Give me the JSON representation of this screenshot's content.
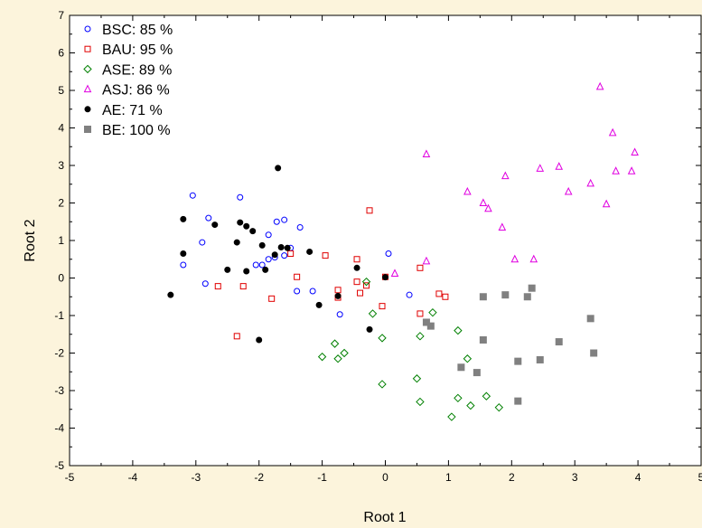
{
  "chart_data": {
    "type": "scatter",
    "title": "",
    "xlabel": "Root 1",
    "ylabel": "Root 2",
    "xlim": [
      -5,
      5
    ],
    "ylim": [
      -5,
      7
    ],
    "x_ticks": [
      "-5",
      "-4",
      "-3",
      "-2",
      "-1",
      "0",
      "1",
      "2",
      "3",
      "4",
      "5"
    ],
    "y_ticks": [
      "-5",
      "-4",
      "-3",
      "-2",
      "-1",
      "0",
      "1",
      "2",
      "3",
      "4",
      "5",
      "6",
      "7"
    ],
    "grid": false,
    "legend_position": "top-left",
    "series": [
      {
        "name": "BSC: 85 %",
        "marker": "circle-open",
        "color": "#0000ff",
        "points": [
          [
            -3.05,
            2.2
          ],
          [
            -2.3,
            2.15
          ],
          [
            -2.8,
            1.6
          ],
          [
            -2.9,
            0.95
          ],
          [
            -3.2,
            0.35
          ],
          [
            -2.85,
            -0.15
          ],
          [
            -2.05,
            0.35
          ],
          [
            -1.95,
            0.35
          ],
          [
            -1.85,
            1.15
          ],
          [
            -1.72,
            1.5
          ],
          [
            -1.6,
            1.55
          ],
          [
            -1.35,
            1.35
          ],
          [
            -1.5,
            0.8
          ],
          [
            -1.6,
            0.6
          ],
          [
            -1.75,
            0.55
          ],
          [
            -1.85,
            0.5
          ],
          [
            -1.4,
            -0.35
          ],
          [
            -1.15,
            -0.35
          ],
          [
            -0.72,
            -0.97
          ],
          [
            0.05,
            0.65
          ],
          [
            0.38,
            -0.45
          ]
        ]
      },
      {
        "name": "BAU: 95 %",
        "marker": "square-open",
        "color": "#e00000",
        "points": [
          [
            -0.25,
            1.8
          ],
          [
            -0.95,
            0.6
          ],
          [
            -1.5,
            0.65
          ],
          [
            -2.65,
            -0.22
          ],
          [
            -2.25,
            -0.22
          ],
          [
            -1.8,
            -0.55
          ],
          [
            -1.4,
            0.03
          ],
          [
            -2.35,
            -1.55
          ],
          [
            -0.75,
            -0.32
          ],
          [
            -0.75,
            -0.52
          ],
          [
            -0.45,
            0.5
          ],
          [
            -0.45,
            -0.1
          ],
          [
            -0.4,
            -0.4
          ],
          [
            -0.3,
            -0.2
          ],
          [
            0.0,
            0.03
          ],
          [
            -0.05,
            -0.75
          ],
          [
            0.55,
            0.27
          ],
          [
            0.55,
            -0.95
          ],
          [
            0.85,
            -0.42
          ],
          [
            0.95,
            -0.5
          ]
        ]
      },
      {
        "name": "ASE: 89 %",
        "marker": "diamond-open",
        "color": "#008000",
        "points": [
          [
            -0.3,
            -0.1
          ],
          [
            -0.2,
            -0.95
          ],
          [
            -0.05,
            -1.6
          ],
          [
            -0.8,
            -1.75
          ],
          [
            -0.75,
            -2.15
          ],
          [
            -0.65,
            -2.0
          ],
          [
            -1.0,
            -2.1
          ],
          [
            -0.05,
            -2.83
          ],
          [
            0.55,
            -1.55
          ],
          [
            0.75,
            -0.92
          ],
          [
            1.15,
            -1.4
          ],
          [
            0.5,
            -2.68
          ],
          [
            0.55,
            -3.3
          ],
          [
            1.05,
            -3.7
          ],
          [
            1.15,
            -3.2
          ],
          [
            1.3,
            -2.15
          ],
          [
            1.35,
            -3.4
          ],
          [
            1.6,
            -3.15
          ],
          [
            1.8,
            -3.45
          ]
        ]
      },
      {
        "name": "ASJ: 86 %",
        "marker": "triangle-open",
        "color": "#e000e0",
        "points": [
          [
            0.65,
            3.3
          ],
          [
            0.15,
            0.12
          ],
          [
            0.65,
            0.45
          ],
          [
            1.3,
            2.3
          ],
          [
            1.55,
            2.0
          ],
          [
            1.63,
            1.85
          ],
          [
            1.85,
            1.35
          ],
          [
            1.9,
            2.72
          ],
          [
            2.05,
            0.5
          ],
          [
            2.35,
            0.5
          ],
          [
            2.45,
            2.92
          ],
          [
            2.75,
            2.97
          ],
          [
            2.9,
            2.3
          ],
          [
            3.25,
            2.52
          ],
          [
            3.4,
            5.1
          ],
          [
            3.5,
            1.97
          ],
          [
            3.6,
            3.87
          ],
          [
            3.65,
            2.85
          ],
          [
            3.9,
            2.85
          ],
          [
            3.95,
            3.35
          ]
        ]
      },
      {
        "name": "AE: 71 %",
        "marker": "circle-filled",
        "color": "#000000",
        "points": [
          [
            -1.7,
            2.93
          ],
          [
            -3.2,
            1.57
          ],
          [
            -3.2,
            0.65
          ],
          [
            -2.7,
            1.42
          ],
          [
            -2.3,
            1.48
          ],
          [
            -2.35,
            0.95
          ],
          [
            -2.2,
            1.38
          ],
          [
            -2.1,
            1.25
          ],
          [
            -1.95,
            0.87
          ],
          [
            -1.75,
            0.62
          ],
          [
            -1.65,
            0.82
          ],
          [
            -1.55,
            0.8
          ],
          [
            -1.2,
            0.7
          ],
          [
            -2.5,
            0.22
          ],
          [
            -2.2,
            0.18
          ],
          [
            -1.9,
            0.22
          ],
          [
            -3.4,
            -0.45
          ],
          [
            -0.75,
            -0.48
          ],
          [
            -1.05,
            -0.72
          ],
          [
            -0.45,
            0.27
          ],
          [
            -0.25,
            -1.37
          ],
          [
            -2.0,
            -1.65
          ],
          [
            0.0,
            0.02
          ]
        ]
      },
      {
        "name": "BE: 100 %",
        "marker": "square-filled",
        "color": "#808080",
        "points": [
          [
            0.65,
            -1.18
          ],
          [
            0.72,
            -1.28
          ],
          [
            1.55,
            -0.5
          ],
          [
            1.9,
            -0.45
          ],
          [
            2.25,
            -0.5
          ],
          [
            2.32,
            -0.27
          ],
          [
            1.55,
            -1.65
          ],
          [
            1.2,
            -2.38
          ],
          [
            1.45,
            -2.52
          ],
          [
            2.1,
            -2.22
          ],
          [
            2.45,
            -2.18
          ],
          [
            2.75,
            -1.7
          ],
          [
            2.1,
            -3.28
          ],
          [
            3.25,
            -1.08
          ],
          [
            3.3,
            -2.0
          ]
        ]
      }
    ]
  }
}
